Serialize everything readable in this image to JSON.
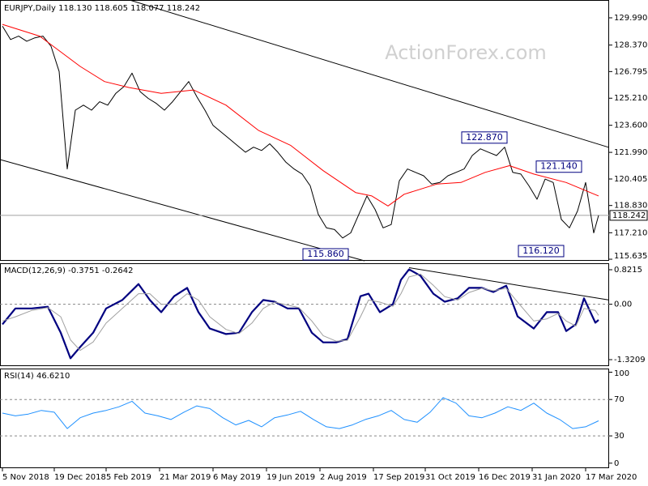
{
  "title": "EURJPY,Daily  118.130 118.605 118.077 118.242",
  "watermark": "ActionForex.com",
  "chart_data": [
    {
      "type": "line",
      "xlim": [
        -1.5,
        374.5
      ],
      "ylim": [
        115.54,
        131.05
      ],
      "yticks": [
        {
          "value": 129.99,
          "label": "129.990"
        },
        {
          "value": 128.37,
          "label": "128.370"
        },
        {
          "value": 126.795,
          "label": "126.795"
        },
        {
          "value": 125.21,
          "label": "125.210"
        },
        {
          "value": 123.6,
          "label": "123.600"
        },
        {
          "value": 121.99,
          "label": "121.990"
        },
        {
          "value": 120.405,
          "label": "120.405"
        },
        {
          "value": 118.83,
          "label": "118.830"
        },
        {
          "value": 117.21,
          "label": "117.210"
        },
        {
          "value": 115.635,
          "label": "115.635"
        }
      ],
      "series": [
        {
          "color": "#000000",
          "width": 1,
          "x": [
            0,
            5,
            10,
            15,
            20,
            25,
            30,
            35,
            40,
            45,
            50,
            55,
            60,
            65,
            70,
            75,
            80,
            85,
            90,
            95,
            100,
            105,
            110,
            115,
            120,
            125,
            130,
            135,
            140,
            145,
            150,
            155,
            160,
            165,
            170,
            175,
            180,
            185,
            190,
            195,
            200,
            205,
            210,
            215,
            220,
            225,
            230,
            235,
            240,
            245,
            250,
            255,
            260,
            265,
            270,
            275,
            280,
            285,
            290,
            295,
            300,
            305,
            310,
            315,
            320,
            325,
            330,
            335,
            340,
            345,
            350,
            355,
            360,
            365,
            368
          ],
          "values": [
            129.5,
            128.7,
            128.9,
            128.6,
            128.8,
            128.9,
            128.3,
            126.8,
            121.0,
            124.5,
            124.8,
            124.5,
            125.0,
            124.8,
            125.5,
            125.9,
            126.7,
            125.6,
            125.2,
            124.9,
            124.5,
            125.0,
            125.6,
            126.2,
            125.3,
            124.5,
            123.6,
            123.2,
            122.8,
            122.4,
            122.0,
            122.3,
            122.1,
            122.5,
            122.0,
            121.4,
            121.0,
            120.7,
            120.0,
            118.3,
            117.5,
            117.4,
            116.9,
            117.2,
            118.3,
            119.4,
            118.6,
            117.5,
            117.7,
            120.3,
            121.0,
            120.8,
            120.6,
            120.1,
            120.2,
            120.6,
            120.8,
            121.0,
            121.8,
            122.2,
            122.0,
            121.8,
            122.3,
            120.8,
            120.7,
            120.0,
            119.2,
            120.4,
            120.2,
            118.0,
            117.5,
            118.5,
            120.2,
            117.2,
            118.242
          ]
        },
        {
          "color": "#ff0000",
          "width": 1,
          "x": [
            0,
            23,
            48,
            63,
            78,
            98,
            118,
            138,
            158,
            178,
            198,
            218,
            228,
            238,
            248,
            268,
            283,
            298,
            313,
            328,
            348,
            368
          ],
          "values": [
            129.6,
            128.9,
            127.1,
            126.2,
            125.85,
            125.5,
            125.7,
            124.8,
            123.3,
            122.4,
            120.9,
            119.6,
            119.4,
            118.8,
            119.5,
            120.1,
            120.2,
            120.8,
            121.2,
            120.7,
            120.2,
            119.4
          ]
        }
      ],
      "last_value": 118.242,
      "trendlines": [
        {
          "x": [
            78.5,
            374.5
          ],
          "y": [
            131.05,
            122.28
          ]
        },
        {
          "x": [
            -1.5,
            223.5
          ],
          "y": [
            121.56,
            115.54
          ]
        }
      ],
      "annotations": [
        {
          "text": "122.870",
          "x": 297.5,
          "y": 122.87
        },
        {
          "text": "121.140",
          "x": 343.5,
          "y": 121.14
        },
        {
          "text": "115.860",
          "x": 199.5,
          "y": 115.86
        },
        {
          "text": "116.120",
          "x": 332.5,
          "y": 116.12
        }
      ]
    },
    {
      "type": "line",
      "title": "MACD(12,26,9) -0.3751 -0.2642",
      "xlim": [
        -1.5,
        374.5
      ],
      "ylim": [
        -1.475,
        0.976
      ],
      "yticks": [
        0.8215,
        {
          "value": 0,
          "label": "0.00"
        },
        -1.3209
      ],
      "grid": true,
      "series": [
        {
          "color": "#000080",
          "width": 2.2,
          "x": [
            0,
            8,
            18,
            28,
            36,
            42,
            48,
            56,
            64,
            74,
            84,
            91,
            98,
            106,
            114,
            121,
            128,
            138,
            146,
            154,
            161,
            168,
            176,
            183,
            191,
            198,
            206,
            213,
            221,
            226,
            233,
            241,
            246,
            251,
            258,
            266,
            273,
            281,
            288,
            296,
            303,
            311,
            318,
            328,
            336,
            343,
            348,
            354,
            359,
            366,
            368
          ],
          "values": [
            -0.48,
            -0.1,
            -0.1,
            -0.06,
            -0.68,
            -1.29,
            -1.02,
            -0.68,
            -0.1,
            0.1,
            0.48,
            0.1,
            -0.19,
            0.19,
            0.39,
            -0.19,
            -0.58,
            -0.71,
            -0.68,
            -0.19,
            0.1,
            0.06,
            -0.1,
            -0.1,
            -0.68,
            -0.91,
            -0.91,
            -0.83,
            0.19,
            0.25,
            -0.19,
            0.0,
            0.58,
            0.83,
            0.68,
            0.25,
            0.06,
            0.14,
            0.39,
            0.39,
            0.29,
            0.44,
            -0.29,
            -0.58,
            -0.19,
            -0.19,
            -0.64,
            -0.48,
            0.14,
            -0.44,
            -0.3751
          ]
        },
        {
          "color": "#a0a0a0",
          "width": 1,
          "x": [
            0,
            8,
            18,
            28,
            36,
            42,
            48,
            56,
            64,
            74,
            84,
            91,
            98,
            106,
            114,
            121,
            128,
            138,
            146,
            154,
            161,
            168,
            176,
            183,
            191,
            198,
            206,
            213,
            221,
            226,
            233,
            241,
            246,
            251,
            258,
            266,
            273,
            281,
            288,
            296,
            303,
            311,
            318,
            328,
            336,
            343,
            348,
            354,
            359,
            366,
            368
          ],
          "values": [
            -0.4,
            -0.3,
            -0.15,
            -0.08,
            -0.3,
            -0.85,
            -1.1,
            -0.9,
            -0.45,
            -0.1,
            0.25,
            0.25,
            0.0,
            0.0,
            0.25,
            0.1,
            -0.3,
            -0.6,
            -0.7,
            -0.45,
            -0.1,
            0.05,
            -0.02,
            -0.08,
            -0.4,
            -0.75,
            -0.88,
            -0.86,
            -0.3,
            0.1,
            0.05,
            -0.05,
            0.25,
            0.65,
            0.72,
            0.45,
            0.18,
            0.1,
            0.28,
            0.38,
            0.32,
            0.38,
            0.05,
            -0.4,
            -0.35,
            -0.22,
            -0.4,
            -0.52,
            -0.1,
            -0.15,
            -0.2642
          ]
        }
      ],
      "trendlines": [
        {
          "x": [
            251,
            374.5
          ],
          "y": [
            0.87,
            0.1
          ]
        }
      ]
    },
    {
      "type": "line",
      "title": "RSI(14) 46.6210",
      "xlim": [
        -1.5,
        374.5
      ],
      "ylim": [
        -5.5,
        104
      ],
      "yticks": [
        100,
        70,
        30,
        0
      ],
      "grid": true,
      "xticks": [
        {
          "value": 0,
          "label": "5 Nov 2018"
        },
        {
          "value": 32,
          "label": "19 Dec 2018"
        },
        {
          "value": 64,
          "label": "5 Feb 2019"
        },
        {
          "value": 97,
          "label": "21 Mar 2019"
        },
        {
          "value": 130,
          "label": "6 May 2019"
        },
        {
          "value": 163,
          "label": "19 Jun 2019"
        },
        {
          "value": 196,
          "label": "2 Aug 2019"
        },
        {
          "value": 229,
          "label": "17 Sep 2019"
        },
        {
          "value": 261,
          "label": "31 Oct 2019"
        },
        {
          "value": 294,
          "label": "16 Dec 2019"
        },
        {
          "value": 327,
          "label": "31 Jan 2020"
        },
        {
          "value": 360,
          "label": "17 Mar 2020"
        }
      ],
      "series": [
        {
          "color": "#1e90ff",
          "width": 1,
          "x": [
            0,
            8,
            16,
            24,
            32,
            40,
            48,
            56,
            64,
            72,
            80,
            88,
            96,
            104,
            112,
            120,
            128,
            136,
            144,
            152,
            160,
            168,
            176,
            184,
            192,
            200,
            208,
            216,
            224,
            232,
            240,
            248,
            256,
            264,
            272,
            280,
            288,
            296,
            304,
            312,
            320,
            328,
            336,
            344,
            352,
            360,
            368
          ],
          "values": [
            55,
            52,
            54,
            58,
            56,
            38,
            50,
            55,
            58,
            62,
            68,
            55,
            52,
            48,
            56,
            63,
            60,
            50,
            42,
            47,
            40,
            50,
            53,
            57,
            48,
            40,
            38,
            42,
            48,
            52,
            58,
            48,
            45,
            56,
            72,
            66,
            52,
            50,
            55,
            62,
            58,
            66,
            55,
            48,
            38,
            40,
            46.621
          ]
        }
      ]
    }
  ]
}
